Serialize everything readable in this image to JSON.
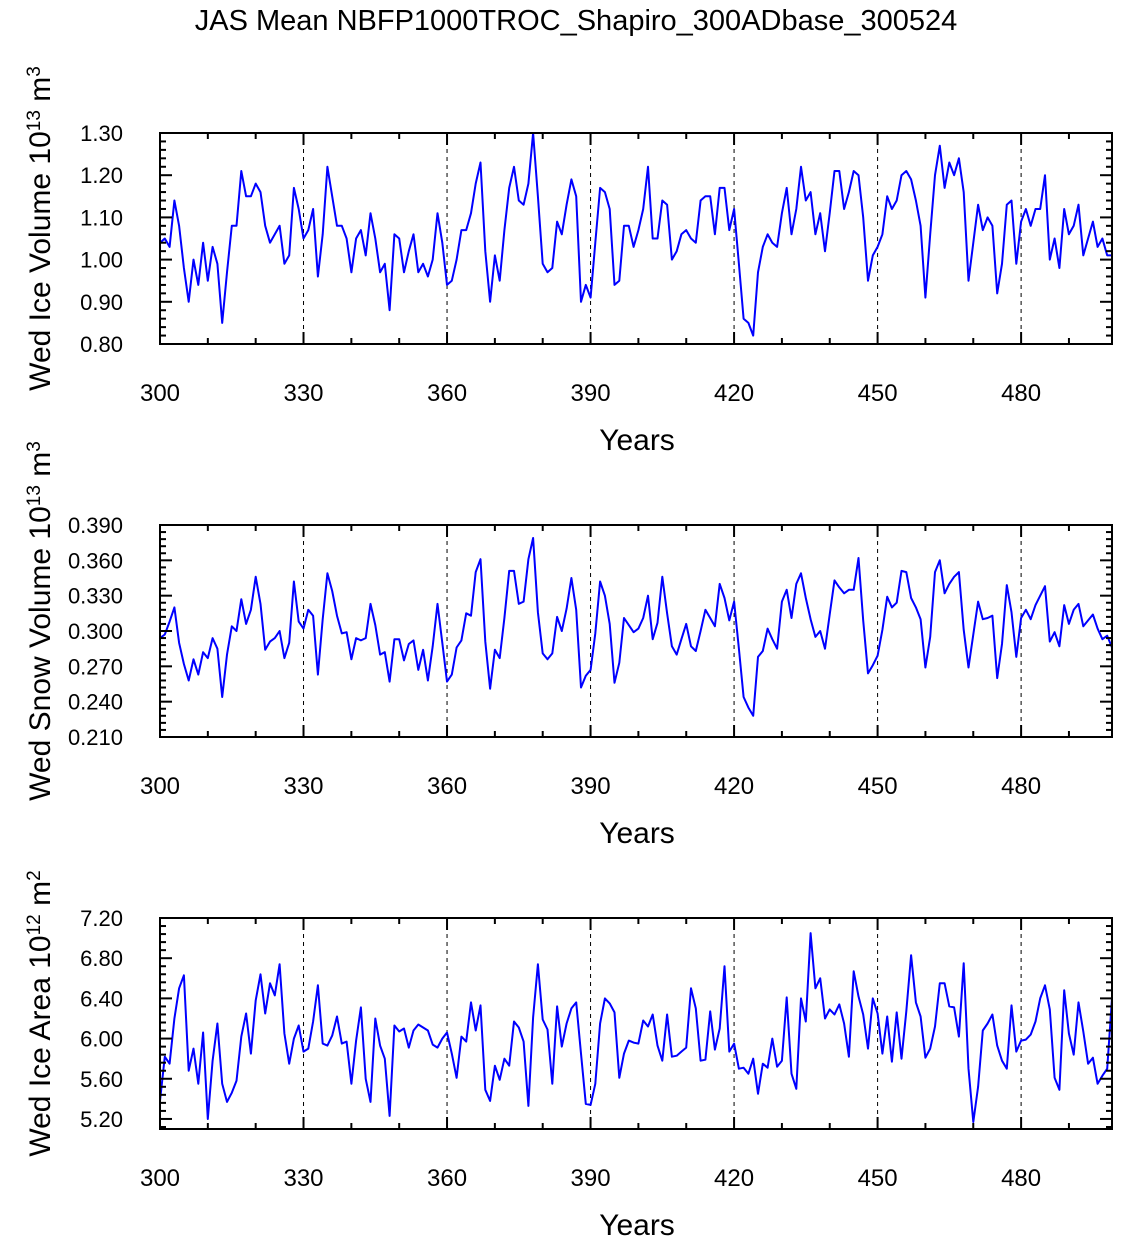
{
  "title": "JAS Mean NBFP1000TROC_Shapiro_300ADbase_300524",
  "colors": {
    "line": "#0000ff",
    "axis": "#000000"
  },
  "chart_data": [
    {
      "type": "line",
      "xlabel": "Years",
      "ylabel": {
        "text": "Wed Ice Volume",
        "base": "10",
        "exp": "13",
        "unit": "m",
        "unit_exp": "3"
      },
      "xlim": [
        300,
        499
      ],
      "ylim": [
        0.8,
        1.3
      ],
      "xticks": [
        "300",
        "330",
        "360",
        "390",
        "420",
        "450",
        "480"
      ],
      "yticks": [
        "0.80",
        "0.90",
        "1.00",
        "1.10",
        "1.20",
        "1.30"
      ],
      "dashed_lines_at": [
        330,
        360,
        390,
        420,
        450,
        480
      ],
      "x_start": 300,
      "values": [
        1.04,
        1.05,
        1.03,
        1.14,
        1.08,
        0.98,
        0.9,
        1.0,
        0.94,
        1.04,
        0.95,
        1.03,
        0.99,
        0.85,
        0.97,
        1.08,
        1.08,
        1.21,
        1.15,
        1.15,
        1.18,
        1.16,
        1.08,
        1.04,
        1.06,
        1.08,
        0.99,
        1.01,
        1.17,
        1.12,
        1.05,
        1.07,
        1.12,
        0.96,
        1.06,
        1.22,
        1.15,
        1.08,
        1.08,
        1.05,
        0.97,
        1.05,
        1.07,
        1.01,
        1.11,
        1.05,
        0.97,
        0.99,
        0.88,
        1.06,
        1.05,
        0.97,
        1.02,
        1.06,
        0.97,
        0.99,
        0.96,
        1.0,
        1.11,
        1.04,
        0.94,
        0.95,
        1.0,
        1.07,
        1.07,
        1.11,
        1.18,
        1.23,
        1.02,
        0.9,
        1.01,
        0.95,
        1.07,
        1.17,
        1.22,
        1.14,
        1.13,
        1.18,
        1.3,
        1.15,
        0.99,
        0.97,
        0.98,
        1.09,
        1.06,
        1.13,
        1.19,
        1.15,
        0.9,
        0.94,
        0.91,
        1.04,
        1.17,
        1.16,
        1.12,
        0.94,
        0.95,
        1.08,
        1.08,
        1.03,
        1.07,
        1.12,
        1.22,
        1.05,
        1.05,
        1.14,
        1.13,
        1.0,
        1.02,
        1.06,
        1.07,
        1.05,
        1.04,
        1.14,
        1.15,
        1.15,
        1.06,
        1.17,
        1.17,
        1.07,
        1.12,
        0.99,
        0.86,
        0.85,
        0.82,
        0.97,
        1.03,
        1.06,
        1.04,
        1.03,
        1.11,
        1.17,
        1.06,
        1.12,
        1.22,
        1.14,
        1.16,
        1.06,
        1.11,
        1.02,
        1.11,
        1.21,
        1.21,
        1.12,
        1.16,
        1.21,
        1.2,
        1.1,
        0.95,
        1.01,
        1.03,
        1.06,
        1.15,
        1.12,
        1.14,
        1.2,
        1.21,
        1.19,
        1.14,
        1.08,
        0.91,
        1.06,
        1.2,
        1.27,
        1.17,
        1.23,
        1.2,
        1.24,
        1.16,
        0.95,
        1.04,
        1.13,
        1.07,
        1.1,
        1.08,
        0.92,
        0.99,
        1.13,
        1.14,
        0.99,
        1.09,
        1.12,
        1.08,
        1.12,
        1.12,
        1.2,
        1.0,
        1.05,
        0.98,
        1.12,
        1.06,
        1.08,
        1.13,
        1.01,
        1.05,
        1.09,
        1.03,
        1.05,
        1.01,
        1.01
      ]
    },
    {
      "type": "line",
      "xlabel": "Years",
      "ylabel": {
        "text": "Wed Snow Volume",
        "base": "10",
        "exp": "13",
        "unit": "m",
        "unit_exp": "3"
      },
      "xlim": [
        300,
        499
      ],
      "ylim": [
        0.21,
        0.39
      ],
      "xticks": [
        "300",
        "330",
        "360",
        "390",
        "420",
        "450",
        "480"
      ],
      "yticks": [
        "0.210",
        "0.240",
        "0.270",
        "0.300",
        "0.330",
        "0.360",
        "0.390"
      ],
      "dashed_lines_at": [
        330,
        360,
        390,
        420,
        450,
        480
      ],
      "x_start": 300,
      "values": [
        0.294,
        0.297,
        0.308,
        0.32,
        0.29,
        0.272,
        0.258,
        0.276,
        0.263,
        0.282,
        0.277,
        0.294,
        0.285,
        0.244,
        0.28,
        0.304,
        0.3,
        0.327,
        0.306,
        0.318,
        0.346,
        0.323,
        0.284,
        0.291,
        0.294,
        0.3,
        0.277,
        0.29,
        0.342,
        0.308,
        0.302,
        0.318,
        0.313,
        0.263,
        0.31,
        0.349,
        0.334,
        0.313,
        0.298,
        0.299,
        0.276,
        0.294,
        0.292,
        0.294,
        0.323,
        0.305,
        0.28,
        0.282,
        0.257,
        0.293,
        0.293,
        0.275,
        0.289,
        0.292,
        0.267,
        0.284,
        0.258,
        0.287,
        0.323,
        0.29,
        0.257,
        0.263,
        0.286,
        0.292,
        0.315,
        0.313,
        0.35,
        0.361,
        0.291,
        0.251,
        0.284,
        0.277,
        0.311,
        0.351,
        0.351,
        0.323,
        0.325,
        0.361,
        0.379,
        0.316,
        0.281,
        0.276,
        0.281,
        0.312,
        0.3,
        0.319,
        0.345,
        0.318,
        0.252,
        0.262,
        0.267,
        0.298,
        0.342,
        0.33,
        0.306,
        0.256,
        0.273,
        0.311,
        0.305,
        0.299,
        0.302,
        0.311,
        0.33,
        0.293,
        0.307,
        0.346,
        0.315,
        0.287,
        0.28,
        0.293,
        0.306,
        0.287,
        0.283,
        0.3,
        0.318,
        0.311,
        0.304,
        0.34,
        0.328,
        0.309,
        0.325,
        0.285,
        0.244,
        0.235,
        0.228,
        0.278,
        0.283,
        0.302,
        0.293,
        0.285,
        0.325,
        0.335,
        0.311,
        0.34,
        0.349,
        0.328,
        0.31,
        0.295,
        0.3,
        0.285,
        0.314,
        0.343,
        0.337,
        0.332,
        0.335,
        0.335,
        0.362,
        0.309,
        0.264,
        0.271,
        0.279,
        0.301,
        0.329,
        0.32,
        0.324,
        0.351,
        0.35,
        0.328,
        0.32,
        0.31,
        0.269,
        0.295,
        0.35,
        0.36,
        0.332,
        0.34,
        0.346,
        0.35,
        0.301,
        0.269,
        0.297,
        0.325,
        0.31,
        0.311,
        0.313,
        0.26,
        0.289,
        0.339,
        0.316,
        0.278,
        0.311,
        0.318,
        0.31,
        0.322,
        0.33,
        0.338,
        0.291,
        0.299,
        0.287,
        0.322,
        0.306,
        0.318,
        0.323,
        0.304,
        0.309,
        0.314,
        0.302,
        0.293,
        0.296,
        0.286
      ]
    },
    {
      "type": "line",
      "xlabel": "Years",
      "ylabel": {
        "text": "Wed Ice Area",
        "base": "10",
        "exp": "12",
        "unit": "m",
        "unit_exp": "2"
      },
      "xlim": [
        300,
        499
      ],
      "ylim": [
        5.1,
        7.2
      ],
      "xticks": [
        "300",
        "330",
        "360",
        "390",
        "420",
        "450",
        "480"
      ],
      "yticks": [
        "5.20",
        "5.60",
        "6.00",
        "6.40",
        "6.80",
        "7.20"
      ],
      "dashed_lines_at": [
        330,
        360,
        390,
        420,
        450,
        480
      ],
      "x_start": 300,
      "values": [
        5.38,
        5.82,
        5.75,
        6.2,
        6.5,
        6.63,
        5.68,
        5.9,
        5.55,
        6.06,
        5.2,
        5.78,
        6.15,
        5.55,
        5.37,
        5.46,
        5.58,
        6.02,
        6.25,
        5.85,
        6.38,
        6.64,
        6.25,
        6.55,
        6.43,
        6.74,
        6.05,
        5.75,
        6.0,
        6.13,
        5.87,
        5.9,
        6.17,
        6.53,
        5.95,
        5.93,
        6.03,
        6.22,
        5.95,
        5.97,
        5.55,
        5.98,
        6.31,
        5.6,
        5.37,
        6.2,
        5.93,
        5.8,
        5.23,
        6.13,
        6.07,
        6.1,
        5.91,
        6.08,
        6.14,
        6.11,
        6.08,
        5.94,
        5.91,
        6.0,
        6.06,
        5.85,
        5.61,
        6.02,
        5.97,
        6.36,
        6.08,
        6.33,
        5.49,
        5.38,
        5.73,
        5.59,
        5.8,
        5.73,
        6.17,
        6.11,
        5.97,
        5.33,
        6.21,
        6.74,
        6.19,
        6.09,
        5.55,
        6.32,
        5.92,
        6.15,
        6.3,
        6.36,
        5.85,
        5.35,
        5.34,
        5.55,
        6.15,
        6.4,
        6.35,
        6.26,
        5.61,
        5.85,
        5.98,
        5.96,
        5.95,
        6.18,
        6.12,
        6.24,
        5.93,
        5.78,
        6.24,
        5.82,
        5.83,
        5.87,
        5.91,
        6.5,
        6.3,
        5.78,
        5.79,
        6.27,
        5.89,
        6.1,
        6.72,
        5.87,
        5.95,
        5.7,
        5.71,
        5.65,
        5.8,
        5.45,
        5.75,
        5.71,
        6.0,
        5.72,
        5.78,
        6.41,
        5.65,
        5.5,
        6.4,
        6.17,
        7.05,
        6.5,
        6.6,
        6.2,
        6.29,
        6.24,
        6.34,
        6.15,
        5.82,
        6.67,
        6.42,
        6.24,
        5.9,
        6.4,
        6.25,
        5.85,
        6.22,
        5.77,
        6.26,
        5.8,
        6.27,
        6.83,
        6.36,
        6.22,
        5.81,
        5.9,
        6.12,
        6.55,
        6.55,
        6.32,
        6.31,
        6.02,
        6.75,
        5.7,
        5.17,
        5.52,
        6.08,
        6.15,
        6.24,
        5.93,
        5.78,
        5.7,
        6.33,
        5.87,
        5.98,
        5.99,
        6.04,
        6.17,
        6.4,
        6.53,
        6.29,
        5.61,
        5.49,
        6.48,
        6.05,
        5.84,
        6.36,
        6.07,
        5.75,
        5.81,
        5.55,
        5.63,
        5.7,
        6.4
      ]
    }
  ]
}
